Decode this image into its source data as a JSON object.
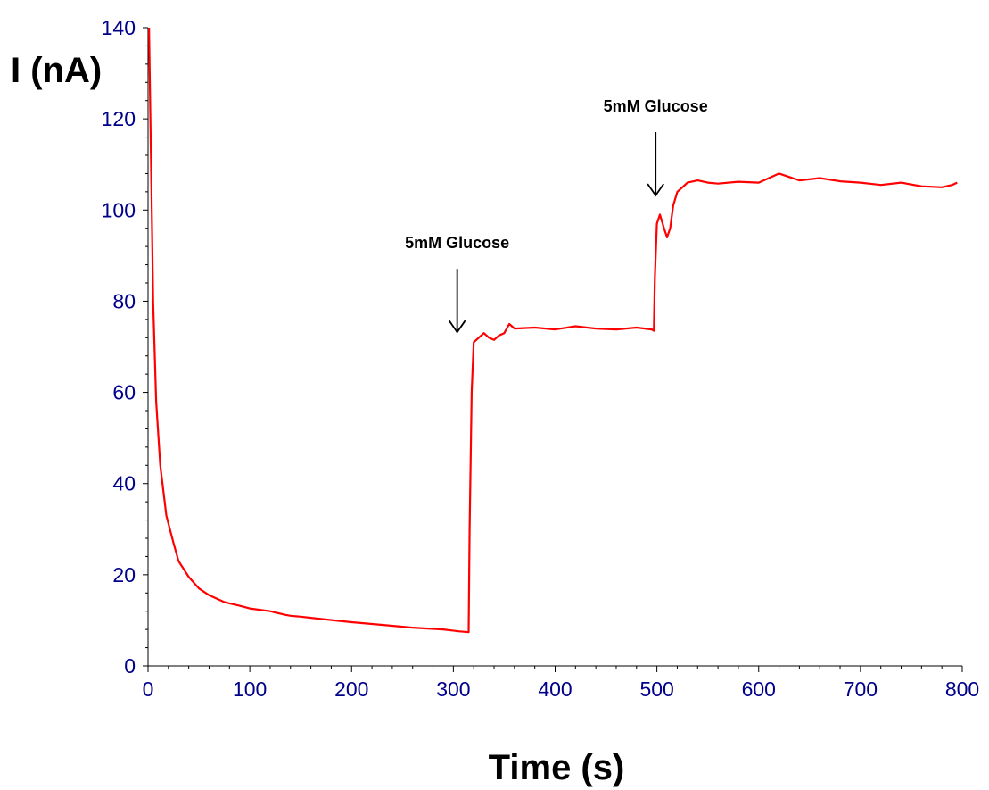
{
  "chart_data": {
    "type": "line",
    "title": "",
    "xlabel": "Time (s)",
    "ylabel": "I (nA)",
    "xlim": [
      0,
      800
    ],
    "ylim": [
      0,
      140
    ],
    "xticks": [
      0,
      100,
      200,
      300,
      400,
      500,
      600,
      700,
      800
    ],
    "yticks": [
      0,
      20,
      40,
      60,
      80,
      100,
      120,
      140
    ],
    "xtick_labels": [
      "0",
      "100",
      "200",
      "300",
      "400",
      "500",
      "600",
      "700",
      "800"
    ],
    "ytick_labels": [
      "0",
      "20",
      "40",
      "60",
      "80",
      "100",
      "120",
      "140"
    ],
    "grid": false,
    "legend": "none",
    "series": [
      {
        "color": "#ff0000",
        "x": [
          1,
          3,
          5,
          8,
          12,
          18,
          25,
          30,
          40,
          50,
          60,
          75,
          90,
          100,
          120,
          135,
          140,
          150,
          170,
          200,
          230,
          260,
          290,
          305,
          315,
          316,
          318,
          320,
          325,
          330,
          335,
          340,
          345,
          350,
          355,
          360,
          380,
          400,
          420,
          440,
          460,
          480,
          495,
          497,
          498,
          500,
          503,
          507,
          510,
          513,
          516,
          520,
          525,
          530,
          540,
          550,
          560,
          580,
          600,
          620,
          640,
          660,
          680,
          700,
          720,
          740,
          760,
          780,
          790,
          795
        ],
        "y": [
          140,
          110,
          80,
          58,
          44,
          33,
          27,
          23,
          19.5,
          17,
          15.5,
          14,
          13.2,
          12.6,
          12,
          11.2,
          11.0,
          10.8,
          10.3,
          9.6,
          9.0,
          8.4,
          8.0,
          7.6,
          7.4,
          30,
          60,
          71,
          72,
          73,
          72,
          71.5,
          72.5,
          73,
          75,
          74,
          74.2,
          73.8,
          74.5,
          74,
          73.8,
          74.2,
          73.8,
          73.5,
          85,
          97,
          99,
          96,
          94,
          96,
          101,
          104,
          105,
          106,
          106.5,
          106,
          105.8,
          106.2,
          106,
          108,
          106.5,
          107,
          106.3,
          106,
          105.5,
          106,
          105.2,
          105,
          105.5,
          106
        ]
      }
    ],
    "annotations": [
      {
        "text": "5mM Glucose",
        "x": 302,
        "y": 73
      },
      {
        "text": "5mM Glucose",
        "x": 497,
        "y": 103
      }
    ]
  }
}
